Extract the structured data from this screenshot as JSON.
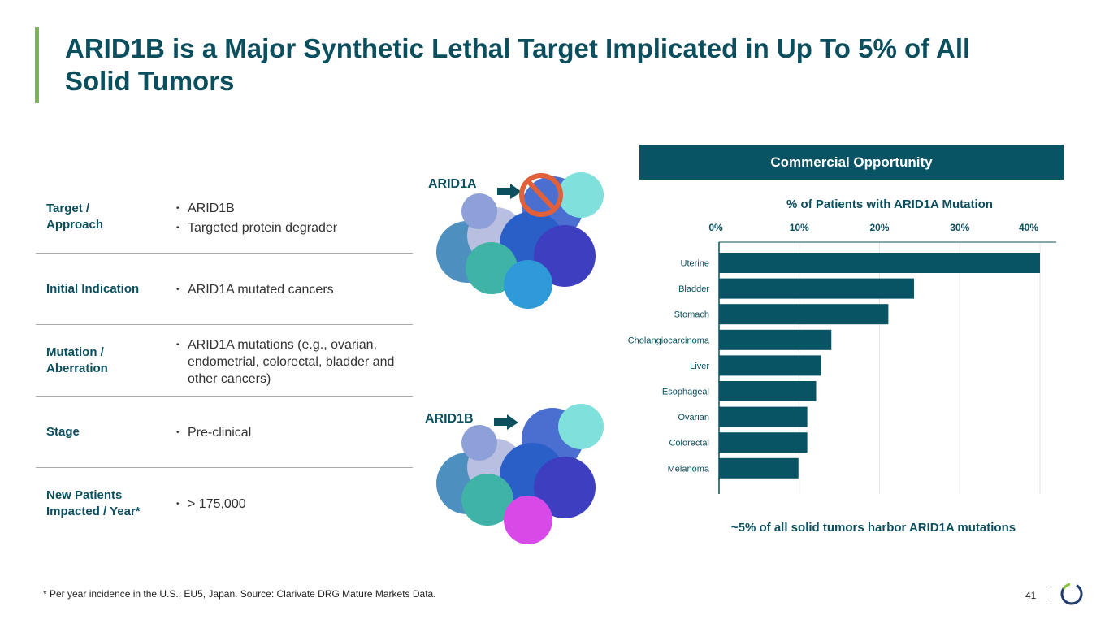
{
  "title": "ARID1B is a Major Synthetic Lethal Target Implicated in Up To 5% of All Solid Tumors",
  "table": {
    "rows": [
      {
        "label": "Target / Approach",
        "bullets": [
          "ARID1B",
          "Targeted protein degrader"
        ]
      },
      {
        "label": "Initial Indication",
        "bullets": [
          "ARID1A mutated cancers"
        ]
      },
      {
        "label": "Mutation / Aberration",
        "bullets": [
          "ARID1A mutations (e.g., ovarian, endometrial, colorectal, bladder and other cancers)"
        ]
      },
      {
        "label": "Stage",
        "bullets": [
          "Pre-clinical"
        ]
      },
      {
        "label": "New Patients Impacted / Year*",
        "bullets": [
          "> 175,000"
        ]
      }
    ]
  },
  "proteins": {
    "top_label": "ARID1A",
    "bottom_label": "ARID1B"
  },
  "commercial_header": "Commercial Opportunity",
  "chart_data": {
    "type": "bar",
    "orientation": "horizontal",
    "title": "% of Patients with ARID1A Mutation",
    "categories": [
      "Uterine",
      "Bladder",
      "Stomach",
      "Cholangiocarcinoma",
      "Liver",
      "Esophageal",
      "Ovarian",
      "Colorectal",
      "Melanoma"
    ],
    "values": [
      40.0,
      24.3,
      21.1,
      14.0,
      12.7,
      12.1,
      11.0,
      11.0,
      9.9
    ],
    "xlim": [
      0,
      40
    ],
    "xticks": [
      "0%",
      "10%",
      "20%",
      "30%",
      "40%"
    ],
    "xtick_values": [
      0,
      10,
      20,
      30,
      40
    ],
    "xlabel": "",
    "ylabel": "",
    "grid": true,
    "bar_color": "#085464"
  },
  "summary": "~5% of all solid tumors harbor ARID1A mutations",
  "footnote": "* Per year incidence in the U.S., EU5, Japan. Source: Clarivate DRG Mature Markets Data.",
  "page_number": "41",
  "colors": {
    "accent": "#7ab648",
    "primary": "#085464",
    "no_sign": "#e0603a"
  }
}
